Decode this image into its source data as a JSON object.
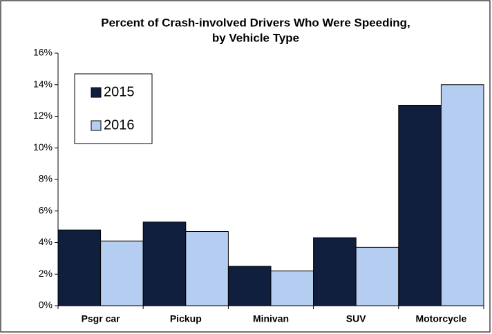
{
  "chart_data": {
    "type": "bar",
    "title": [
      "Percent of Crash-involved Drivers Who Were Speeding,",
      "by Vehicle Type"
    ],
    "categories": [
      "Psgr car",
      "Pickup",
      "Minivan",
      "SUV",
      "Motorcycle"
    ],
    "series": [
      {
        "name": "2015",
        "color": "#0f1f3d",
        "values": [
          4.8,
          5.3,
          2.5,
          4.3,
          12.7
        ]
      },
      {
        "name": "2016",
        "color": "#b4cdf0",
        "values": [
          4.1,
          4.7,
          2.2,
          3.7,
          14.0
        ]
      }
    ],
    "ylim": [
      0,
      16
    ],
    "yticks": [
      {
        "value": 0,
        "label": "0%"
      },
      {
        "value": 2,
        "label": "2%"
      },
      {
        "value": 4,
        "label": "4%"
      },
      {
        "value": 6,
        "label": "6%"
      },
      {
        "value": 8,
        "label": "8%"
      },
      {
        "value": 10,
        "label": "10%"
      },
      {
        "value": 12,
        "label": "12%"
      },
      {
        "value": 14,
        "label": "14%"
      },
      {
        "value": 16,
        "label": "16%"
      }
    ],
    "grid": false,
    "legend": "upper left"
  }
}
